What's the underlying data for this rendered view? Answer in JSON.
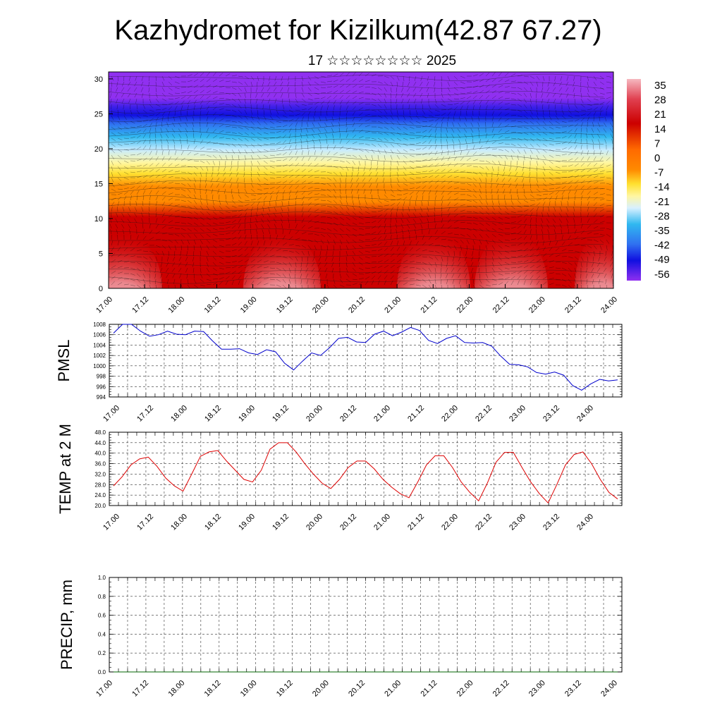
{
  "title": "Kazhydromet for Kizilkum(42.87 67.27)",
  "subtitle": "17 ☆☆☆☆☆☆☆☆ 2025",
  "time_labels": [
    "17.00",
    "17.12",
    "18.00",
    "18.12",
    "19.00",
    "19.12",
    "20.00",
    "20.12",
    "21.00",
    "21.12",
    "22.00",
    "22.12",
    "23.00",
    "23.12",
    "24.00"
  ],
  "chart_data": [
    {
      "type": "heatmap",
      "name": "temperature-wind-cross-section",
      "y_ticks": [
        0,
        5,
        10,
        15,
        20,
        25,
        30
      ],
      "ylim": [
        0,
        31
      ],
      "colorbar_labels": [
        "35",
        "28",
        "21",
        "14",
        "7",
        "0",
        "-7",
        "-14",
        "-21",
        "-28",
        "-35",
        "-42",
        "-49",
        "-56"
      ],
      "colors": {
        "hot": "#f6b8c0",
        "red": "#cc0000",
        "orange": "#ff8a00",
        "yellow": "#ffe030",
        "cyan": "#30b8f0",
        "blue": "#1010e0",
        "purple": "#9030f0"
      }
    },
    {
      "type": "line",
      "ylabel": "PMSL",
      "ylim": [
        994,
        1008
      ],
      "y_ticks": [
        994,
        996,
        998,
        1000,
        1002,
        1004,
        1006,
        1008
      ],
      "color": "#0000cc",
      "values": [
        1006.3,
        1008.0,
        1008.0,
        1006.7,
        1005.7,
        1006.0,
        1006.7,
        1006.1,
        1006.0,
        1006.7,
        1006.6,
        1004.8,
        1003.2,
        1003.2,
        1003.3,
        1002.5,
        1002.2,
        1003.1,
        1002.7,
        1000.5,
        999.2,
        1000.9,
        1002.5,
        1002.0,
        1003.5,
        1005.3,
        1005.5,
        1004.6,
        1004.5,
        1006.1,
        1006.7,
        1005.8,
        1006.5,
        1007.4,
        1006.8,
        1004.9,
        1004.3,
        1005.3,
        1005.8,
        1004.5,
        1004.4,
        1004.5,
        1003.8,
        1001.9,
        1000.3,
        1000.2,
        999.8,
        998.7,
        998.4,
        998.8,
        998.2,
        996.2,
        995.3,
        996.5,
        997.4,
        997.1,
        997.3
      ]
    },
    {
      "type": "line",
      "ylabel": "TEMP at 2 M",
      "ylim": [
        20,
        48
      ],
      "y_ticks": [
        "20.0",
        "24.0",
        "28.0",
        "32.0",
        "36.0",
        "40.0",
        "44.0",
        "48.0"
      ],
      "color": "#dd0000",
      "values": [
        27.5,
        31.0,
        35.5,
        37.8,
        38.5,
        35.0,
        30.5,
        27.5,
        25.5,
        32.0,
        38.8,
        40.5,
        41.0,
        37.0,
        33.5,
        30.0,
        29.0,
        33.5,
        41.5,
        44.0,
        44.0,
        40.5,
        36.0,
        32.0,
        28.5,
        26.5,
        30.0,
        34.5,
        37.0,
        37.0,
        34.0,
        30.0,
        27.0,
        24.5,
        23.0,
        29.0,
        35.5,
        39.0,
        39.0,
        34.5,
        29.0,
        25.0,
        21.8,
        28.5,
        36.5,
        40.3,
        40.3,
        34.5,
        29.0,
        24.5,
        21.0,
        28.0,
        35.5,
        39.5,
        40.5,
        36.0,
        30.0,
        25.0,
        22.5
      ]
    },
    {
      "type": "line",
      "ylabel": "PRECIP, mm",
      "ylim": [
        0,
        1
      ],
      "y_ticks": [
        "0.0",
        "0.2",
        "0.4",
        "0.6",
        "0.8",
        "1.0"
      ],
      "color": "#006600",
      "values": [
        0,
        0,
        0,
        0,
        0,
        0,
        0,
        0,
        0,
        0,
        0,
        0,
        0,
        0,
        0,
        0,
        0,
        0,
        0,
        0,
        0,
        0,
        0,
        0,
        0,
        0,
        0,
        0,
        0,
        0,
        0,
        0,
        0,
        0,
        0,
        0,
        0,
        0,
        0,
        0,
        0,
        0,
        0,
        0,
        0,
        0,
        0,
        0,
        0,
        0,
        0,
        0,
        0,
        0,
        0,
        0,
        0
      ]
    }
  ]
}
